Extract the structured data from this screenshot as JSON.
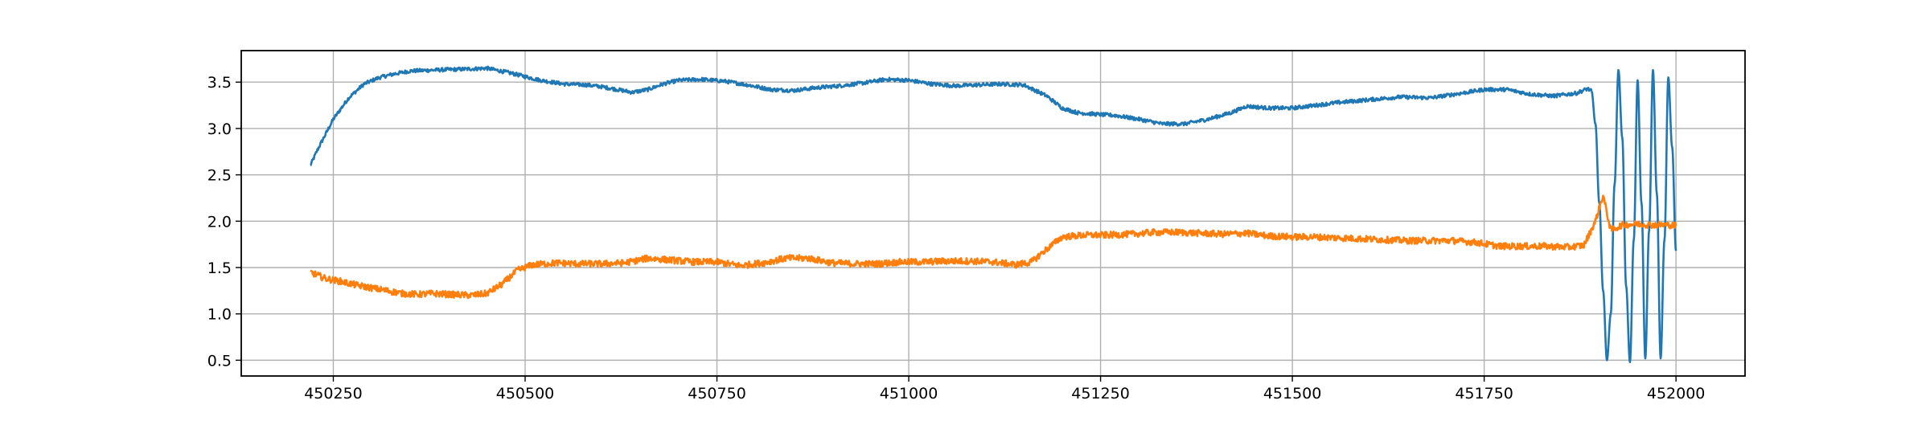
{
  "chart_data": {
    "type": "line",
    "title": "",
    "xlabel": "",
    "ylabel": "",
    "xlim": [
      450130,
      452090
    ],
    "ylim": [
      0.33,
      3.84
    ],
    "xticks": [
      450250,
      450500,
      450750,
      451000,
      451250,
      451500,
      451750,
      452000
    ],
    "xtick_labels": [
      "450250",
      "450500",
      "450750",
      "451000",
      "451250",
      "451500",
      "451750",
      "452000"
    ],
    "yticks": [
      0.5,
      1.0,
      1.5,
      2.0,
      2.5,
      3.0,
      3.5
    ],
    "ytick_labels": [
      "0.5",
      "1.0",
      "1.5",
      "2.0",
      "2.5",
      "3.0",
      "3.5"
    ],
    "grid": true,
    "legend": "none",
    "series": [
      {
        "color": "#1f77b4",
        "noise": 0.02,
        "x": [
          450220,
          450230,
          450250,
          450270,
          450290,
          450310,
          450330,
          450350,
          450380,
          450420,
          450450,
          450480,
          450520,
          450550,
          450580,
          450600,
          450620,
          450640,
          450660,
          450680,
          450700,
          450730,
          450760,
          450790,
          450820,
          450850,
          450880,
          450910,
          450940,
          450970,
          451000,
          451030,
          451060,
          451090,
          451120,
          451150,
          451180,
          451200,
          451220,
          451250,
          451270,
          451300,
          451330,
          451360,
          451390,
          451420,
          451440,
          451470,
          451500,
          451530,
          451560,
          451600,
          451640,
          451680,
          451720,
          451750,
          451780,
          451810,
          451840,
          451870,
          451885,
          451890
        ],
        "y": [
          2.6,
          2.78,
          3.1,
          3.33,
          3.48,
          3.55,
          3.59,
          3.62,
          3.63,
          3.64,
          3.65,
          3.6,
          3.52,
          3.48,
          3.47,
          3.45,
          3.42,
          3.39,
          3.42,
          3.48,
          3.52,
          3.53,
          3.51,
          3.47,
          3.42,
          3.41,
          3.44,
          3.46,
          3.49,
          3.53,
          3.52,
          3.48,
          3.46,
          3.47,
          3.48,
          3.47,
          3.35,
          3.22,
          3.17,
          3.15,
          3.14,
          3.1,
          3.05,
          3.05,
          3.1,
          3.17,
          3.24,
          3.22,
          3.22,
          3.25,
          3.28,
          3.31,
          3.34,
          3.33,
          3.38,
          3.42,
          3.42,
          3.37,
          3.35,
          3.38,
          3.43,
          3.4
        ]
      },
      {
        "color": "#1f77b4",
        "noise": 0,
        "x": [
          451890,
          451895,
          451900,
          451905,
          451910,
          451915,
          451920,
          451925,
          451930,
          451935,
          451940,
          451945,
          451950,
          451955,
          451960,
          451965,
          451970,
          451975,
          451980,
          451985,
          451990,
          451995,
          452000
        ],
        "y": [
          3.4,
          3.05,
          2.2,
          1.25,
          0.5,
          1.0,
          2.4,
          3.63,
          2.9,
          1.3,
          0.48,
          1.8,
          3.52,
          2.2,
          0.52,
          1.9,
          3.63,
          2.3,
          0.52,
          1.8,
          3.55,
          2.8,
          1.68
        ]
      },
      {
        "color": "#ff7f0e",
        "noise": 0.035,
        "x": [
          450220,
          450240,
          450260,
          450280,
          450300,
          450320,
          450340,
          450360,
          450380,
          450400,
          450430,
          450450,
          450470,
          450490,
          450510,
          450540,
          450570,
          450600,
          450630,
          450660,
          450690,
          450720,
          450750,
          450780,
          450810,
          450840,
          450870,
          450900,
          450930,
          450960,
          450990,
          451020,
          451050,
          451080,
          451110,
          451140,
          451160,
          451180,
          451200,
          451230,
          451260,
          451290,
          451320,
          451350,
          451380,
          451410,
          451440,
          451470,
          451500,
          451530,
          451560,
          451590,
          451620,
          451650,
          451680,
          451710,
          451740,
          451770,
          451800,
          451830,
          451860,
          451880,
          451895,
          451905,
          451915,
          451930,
          451950,
          451970,
          451990,
          452000
        ],
        "y": [
          1.45,
          1.38,
          1.35,
          1.31,
          1.28,
          1.25,
          1.22,
          1.21,
          1.22,
          1.21,
          1.2,
          1.22,
          1.32,
          1.47,
          1.53,
          1.55,
          1.54,
          1.54,
          1.55,
          1.6,
          1.58,
          1.56,
          1.56,
          1.52,
          1.55,
          1.6,
          1.6,
          1.55,
          1.54,
          1.54,
          1.56,
          1.56,
          1.57,
          1.57,
          1.56,
          1.53,
          1.56,
          1.7,
          1.83,
          1.85,
          1.85,
          1.86,
          1.88,
          1.88,
          1.87,
          1.86,
          1.87,
          1.84,
          1.83,
          1.83,
          1.82,
          1.81,
          1.8,
          1.79,
          1.79,
          1.79,
          1.77,
          1.73,
          1.73,
          1.73,
          1.72,
          1.74,
          2.0,
          2.28,
          1.9,
          1.96,
          1.97,
          1.96,
          1.96,
          1.95
        ]
      }
    ]
  }
}
